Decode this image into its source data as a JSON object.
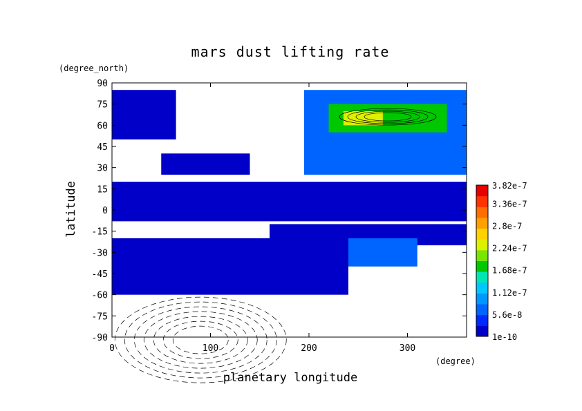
{
  "chart_data": {
    "type": "heatmap",
    "title": "mars dust lifting rate",
    "xlabel": "planetary longitude",
    "ylabel": "latitude",
    "x_unit": "(degree)",
    "y_unit": "(degree_north)",
    "xlim": [
      0,
      360
    ],
    "ylim": [
      -90,
      90
    ],
    "x_ticks": [
      0,
      100,
      200,
      300
    ],
    "y_ticks": [
      90,
      75,
      60,
      45,
      30,
      15,
      0,
      -15,
      -30,
      -45,
      -60,
      -75,
      -90
    ],
    "colorbar": {
      "min": 1e-10,
      "max": 3.82e-07,
      "labels": [
        "3.82e-7",
        "3.36e-7",
        "2.8e-7",
        "2.24e-7",
        "1.68e-7",
        "1.12e-7",
        "5.6e-8",
        "1e-10"
      ],
      "values": [
        3.82e-07,
        3.36e-07,
        2.8e-07,
        2.24e-07,
        1.68e-07,
        1.12e-07,
        5.6e-08,
        1e-10
      ],
      "colors": [
        "#0000c8",
        "#0028ff",
        "#0064ff",
        "#0096ff",
        "#00c8ff",
        "#00e6b4",
        "#00c800",
        "#78e600",
        "#dcf000",
        "#ffd200",
        "#ffa000",
        "#ff6e00",
        "#ff3200",
        "#e60000"
      ]
    },
    "field_regions": [
      {
        "lon": [
          0,
          360
        ],
        "lat": [
          0,
          20
        ],
        "level": 1e-10
      },
      {
        "lon": [
          0,
          360
        ],
        "lat": [
          -8,
          0
        ],
        "level": 1e-10
      },
      {
        "lon": [
          160,
          360
        ],
        "lat": [
          -25,
          -10
        ],
        "level": 1e-10
      },
      {
        "lon": [
          0,
          240
        ],
        "lat": [
          -60,
          -20
        ],
        "level": 1e-10
      },
      {
        "lon": [
          240,
          310
        ],
        "lat": [
          -40,
          -20
        ],
        "level": 5.6e-08
      },
      {
        "lon": [
          195,
          360
        ],
        "lat": [
          25,
          85
        ],
        "level": 5.6e-08
      },
      {
        "lon": [
          220,
          340
        ],
        "lat": [
          55,
          75
        ],
        "level": 1.68e-07
      },
      {
        "lon": [
          235,
          275
        ],
        "lat": [
          60,
          70
        ],
        "level": 2.24e-07
      },
      {
        "lon": [
          0,
          65
        ],
        "lat": [
          50,
          85
        ],
        "level": 1e-10
      },
      {
        "lon": [
          50,
          140
        ],
        "lat": [
          25,
          40
        ],
        "level": 1e-10
      }
    ]
  }
}
